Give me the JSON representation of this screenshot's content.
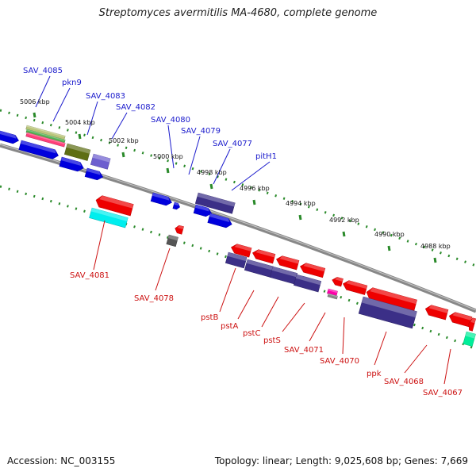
{
  "title": "Streptomyces avermitilis MA-4680, complete genome",
  "footer": {
    "accession": "Accession: NC_003155",
    "summary": "Topology: linear; Length: 9,025,608 bp; Genes: 7,669"
  },
  "colors": {
    "forward_label": "#1a1acc",
    "reverse_label": "#cc1111",
    "backbone": "#888888",
    "dotted_track": "#2a8a2a"
  },
  "ticks": [
    "5006 kbp",
    "5004 kbp",
    "5002 kbp",
    "5000 kbp",
    "4998 kbp",
    "4996 kbp",
    "4994 kbp",
    "4992 kbp",
    "4990 kbp",
    "4988 kbp"
  ],
  "forward_labels": [
    "SAV_4085",
    "pkn9",
    "SAV_4083",
    "SAV_4082",
    "SAV_4080",
    "SAV_4079",
    "SAV_4077",
    "pitH1"
  ],
  "reverse_labels": [
    "SAV_4081",
    "SAV_4078",
    "pstB",
    "pstA",
    "pstC",
    "pstS",
    "SAV_4071",
    "SAV_4070",
    "ppk",
    "SAV_4068",
    "SAV_4067"
  ]
}
